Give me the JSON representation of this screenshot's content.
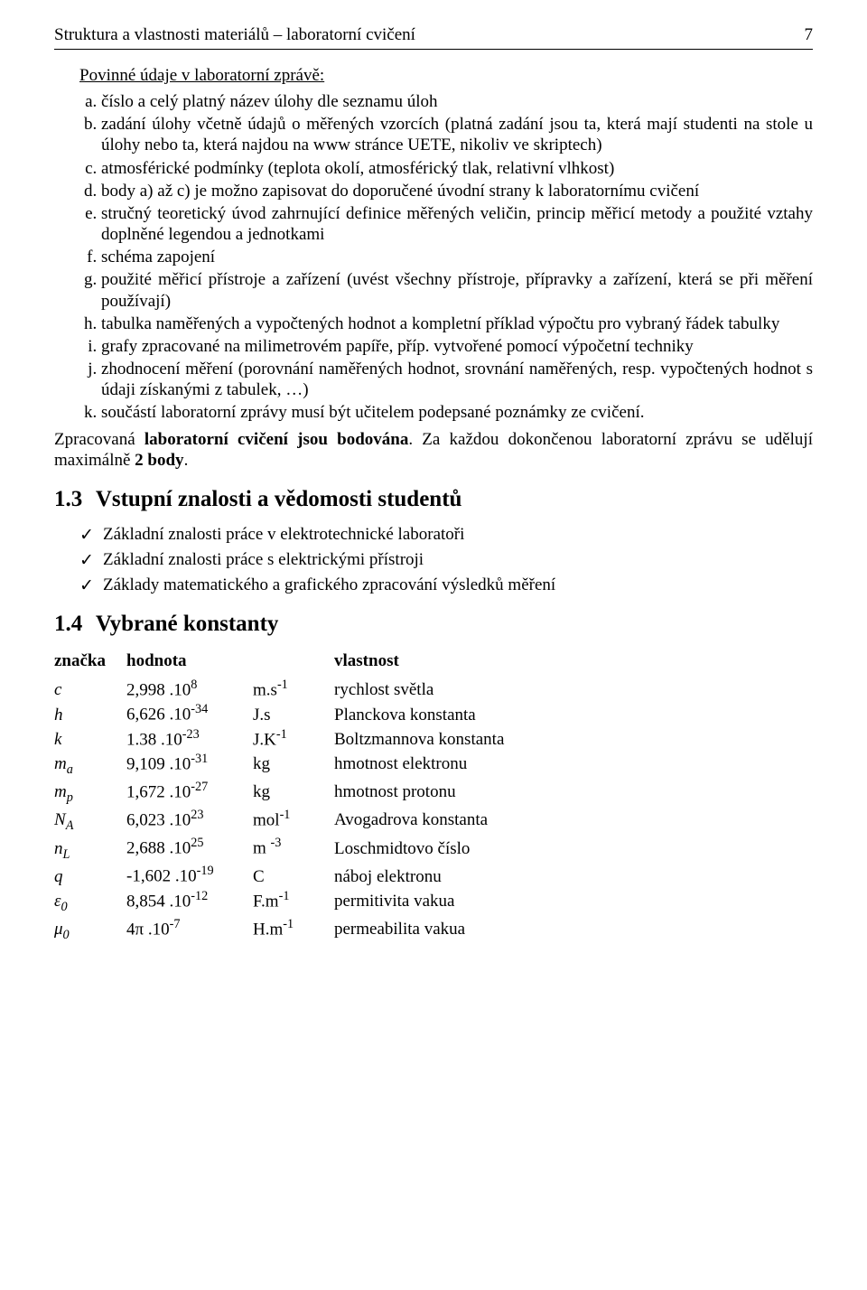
{
  "header": {
    "running_title": "Struktura a vlastnosti materiálů – laboratorní cvičení",
    "page_number": "7"
  },
  "mandatory": {
    "title": "Povinné údaje v laboratorní zprávě:",
    "items": [
      "číslo a celý platný název úlohy dle seznamu úloh",
      "zadání úlohy včetně údajů o měřených vzorcích (platná zadání jsou ta, která mají studenti na stole u úlohy nebo ta, která najdou na www stránce UETE, nikoliv ve skriptech)",
      "atmosférické podmínky (teplota okolí, atmosférický tlak, relativní vlhkost)",
      "body a) až c) je možno zapisovat do doporučené úvodní strany k laboratornímu cvičení",
      "stručný teoretický úvod zahrnující definice měřených veličin, princip měřicí metody a použité vztahy doplněné legendou a jednotkami",
      "schéma zapojení",
      "použité měřicí přístroje a zařízení (uvést všechny přístroje, přípravky a zařízení, která se při měření používají)",
      "tabulka naměřených a vypočtených hodnot a kompletní příklad výpočtu pro vybraný řádek tabulky",
      "grafy zpracované na milimetrovém papíře, příp. vytvořené pomocí výpočetní techniky",
      "zhodnocení měření (porovnání naměřených hodnot, srovnání naměřených, resp. vypočtených hodnot s údaji získanými z tabulek, …)",
      "součástí laboratorní zprávy musí být učitelem podepsané poznámky ze cvičení."
    ],
    "footer_plain_1": "Zpracovaná ",
    "footer_bold_1": "laboratorní cvičení jsou bodována",
    "footer_plain_2": ". Za každou dokončenou laboratorní zprávu se udělují maximálně ",
    "footer_bold_2": "2 body",
    "footer_plain_3": "."
  },
  "section_13": {
    "number": "1.3",
    "title": "Vstupní znalosti a vědomosti studentů",
    "items": [
      "Základní znalosti práce v elektrotechnické laboratoři",
      "Základní znalosti práce s elektrickými přístroji",
      "Základy matematického a grafického zpracování výsledků měření"
    ]
  },
  "section_14": {
    "number": "1.4",
    "title": "Vybrané konstanty",
    "columns": {
      "symbol": "značka",
      "value": "hodnota",
      "property": "vlastnost"
    },
    "rows": [
      {
        "sym": "c",
        "sub": "",
        "coef": "2,998",
        "dot": " .",
        "exp": "8",
        "unit_pre": "m.s",
        "unit_exp": "-1",
        "desc": "rychlost světla"
      },
      {
        "sym": "h",
        "sub": "",
        "coef": "6,626",
        "dot": " .",
        "exp": "-34",
        "unit_pre": "J.s",
        "unit_exp": "",
        "desc": "Planckova konstanta"
      },
      {
        "sym": "k",
        "sub": "",
        "coef": "1.38",
        "dot": " .",
        "exp": "-23",
        "unit_pre": "J.K",
        "unit_exp": "-1",
        "desc": "Boltzmannova konstanta"
      },
      {
        "sym": "m",
        "sub": "a",
        "coef": "9,109",
        "dot": " .",
        "exp": "-31",
        "unit_pre": "kg",
        "unit_exp": "",
        "desc": "hmotnost elektronu"
      },
      {
        "sym": "m",
        "sub": "p",
        "coef": "1,672",
        "dot": " .",
        "exp": "-27",
        "unit_pre": "kg",
        "unit_exp": "",
        "desc": "hmotnost protonu"
      },
      {
        "sym": "N",
        "sub": "A",
        "coef": "6,023",
        "dot": " .",
        "exp": "23",
        "unit_pre": "mol",
        "unit_exp": "-1",
        "desc": "Avogadrova konstanta"
      },
      {
        "sym": "n",
        "sub": "L",
        "coef": "2,688",
        "dot": " .",
        "exp": "25",
        "unit_pre": "m ",
        "unit_exp": "-3",
        "desc": "Loschmidtovo číslo"
      },
      {
        "sym": "q",
        "sub": "",
        "coef": "-1,602",
        "dot": " .",
        "exp": "-19",
        "unit_pre": "C",
        "unit_exp": "",
        "desc": "náboj elektronu"
      },
      {
        "sym": "ε",
        "sub": "0",
        "coef": "8,854",
        "dot": " .",
        "exp": "-12",
        "unit_pre": " F.m",
        "unit_exp": "-1",
        "desc": "permitivita vakua"
      },
      {
        "sym": "μ",
        "sub": "0",
        "coef": "4π",
        "dot": " .",
        "exp": "-7",
        "unit_pre": " H.m",
        "unit_exp": "-1",
        "desc": "permeabilita vakua"
      }
    ]
  }
}
